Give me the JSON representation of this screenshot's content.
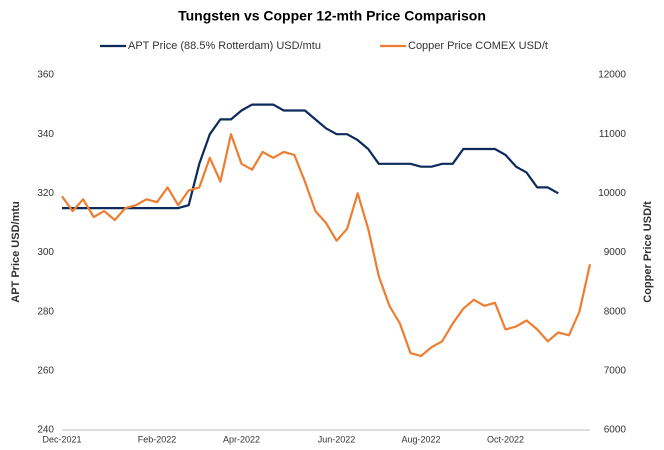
{
  "chart_data": {
    "type": "line",
    "title": "Tungsten vs Copper 12-mth Price Comparison",
    "y_label": "APT Price USD/mtu",
    "y2_label": "Copper Price USD/t",
    "categories": [
      "Dec-2021",
      null,
      null,
      null,
      null,
      null,
      null,
      null,
      null,
      "Feb-2022",
      null,
      null,
      null,
      null,
      null,
      null,
      null,
      "Apr-2022",
      null,
      null,
      null,
      null,
      null,
      null,
      null,
      null,
      "Jun-2022",
      null,
      null,
      null,
      null,
      null,
      null,
      null,
      "Aug-2022",
      null,
      null,
      null,
      null,
      null,
      null,
      null,
      "Oct-2022",
      null,
      null,
      null,
      null,
      null,
      null,
      null,
      null
    ],
    "series": [
      {
        "name": "APT Price (88.5% Rotterdam) USD/mtu",
        "color": "#0d2a5c",
        "axis": "y",
        "values": [
          315,
          315,
          315,
          315,
          315,
          315,
          315,
          315,
          315,
          315,
          315,
          315,
          316,
          330,
          340,
          345,
          345,
          348,
          350,
          350,
          350,
          348,
          348,
          348,
          345,
          342,
          340,
          340,
          338,
          335,
          330,
          330,
          330,
          330,
          329,
          329,
          330,
          330,
          335,
          335,
          335,
          335,
          333,
          329,
          327,
          322,
          322,
          320,
          null,
          null,
          null
        ]
      },
      {
        "name": "Copper Price COMEX USD/t",
        "color": "#ed7d31",
        "axis": "y2",
        "values": [
          9950,
          9700,
          9900,
          9600,
          9700,
          9550,
          9750,
          9800,
          9900,
          9850,
          10100,
          9800,
          10050,
          10100,
          10600,
          10200,
          11000,
          10500,
          10400,
          10700,
          10600,
          10700,
          10650,
          10200,
          9700,
          9500,
          9200,
          9400,
          10000,
          9400,
          8600,
          8100,
          7800,
          7300,
          7250,
          7400,
          7500,
          7800,
          8050,
          8200,
          8100,
          8150,
          7700,
          7750,
          7850,
          7700,
          7500,
          7650,
          7600,
          8000,
          8800
        ]
      }
    ],
    "ylim": [
      240,
      360
    ],
    "yticks": [
      240,
      260,
      280,
      300,
      320,
      340,
      360
    ],
    "y2lim": [
      6000,
      12000
    ],
    "y2ticks": [
      6000,
      7000,
      8000,
      9000,
      10000,
      11000,
      12000
    ],
    "legend": "top"
  }
}
